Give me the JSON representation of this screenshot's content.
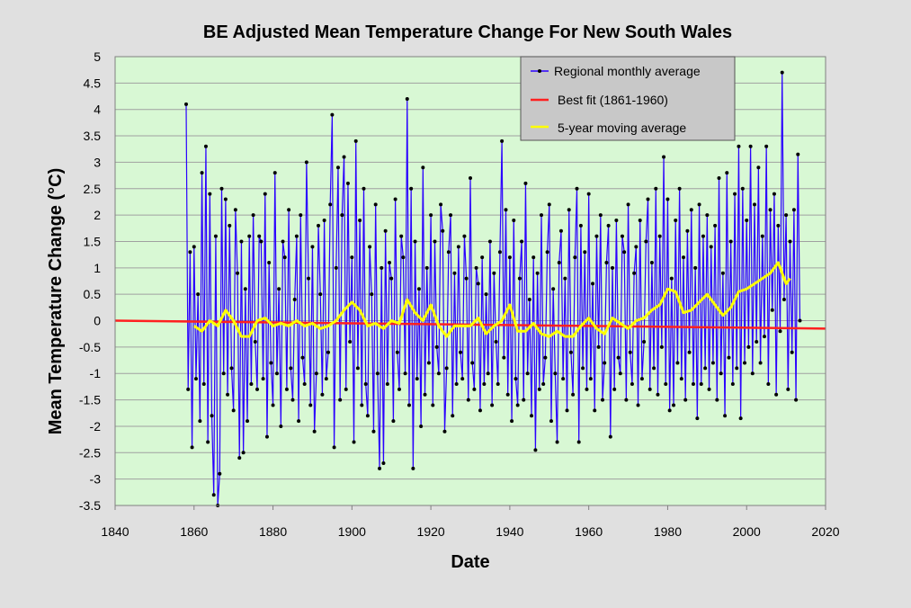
{
  "chart_data": {
    "type": "line",
    "title": "BE Adjusted Mean Temperature Change For New South Wales",
    "xlabel": "Date",
    "ylabel": "Mean  Temperature  Change  (°C)",
    "xlim": [
      1840,
      2020
    ],
    "ylim": [
      -3.5,
      5
    ],
    "xticks": [
      "1840",
      "1860",
      "1880",
      "1900",
      "1920",
      "1940",
      "1960",
      "1980",
      "2000",
      "2020"
    ],
    "yticks": [
      "5",
      "4.5",
      "4",
      "3.5",
      "3",
      "2.5",
      "2",
      "1.5",
      "1",
      "0.5",
      "0",
      "-0.5",
      "-1",
      "-1.5",
      "-2",
      "-2.5",
      "-3",
      "-3.5"
    ],
    "grid": true,
    "legend_position": "top-right",
    "colors": {
      "background": "#e0e0e0",
      "plot_background": "#d8f8d4",
      "grid": "#a0a0a0",
      "monthly_line": "#2a00ff",
      "monthly_marker": "#000000",
      "best_fit": "#ff2020",
      "moving_average": "#ffff00",
      "legend_background": "#c8c8c8"
    },
    "series": [
      {
        "name": "Regional monthly average",
        "x_start": 1858,
        "x_step": 0.5,
        "values": [
          4.1,
          -1.3,
          1.3,
          -2.4,
          1.4,
          -1.1,
          0.5,
          -1.9,
          2.8,
          -1.2,
          3.3,
          -2.3,
          2.4,
          -1.8,
          -3.3,
          1.6,
          -3.5,
          -2.9,
          2.5,
          -1.0,
          2.3,
          -1.4,
          1.8,
          -0.9,
          -1.7,
          2.1,
          0.9,
          -2.6,
          1.5,
          -2.5,
          0.6,
          -1.9,
          1.6,
          -1.2,
          2.0,
          -0.4,
          -1.3,
          1.6,
          1.5,
          -1.1,
          2.4,
          -2.2,
          1.1,
          -0.8,
          -1.6,
          2.8,
          -1.0,
          0.6,
          -2.0,
          1.5,
          1.2,
          -1.3,
          2.1,
          -0.9,
          -1.5,
          0.4,
          1.6,
          -1.9,
          2.0,
          -0.7,
          -1.2,
          3.0,
          0.8,
          -1.6,
          1.4,
          -2.1,
          -1.0,
          1.8,
          0.5,
          -1.4,
          1.9,
          -1.1,
          -0.6,
          2.2,
          3.9,
          -2.4,
          1.0,
          2.9,
          -1.5,
          2.0,
          3.1,
          -1.3,
          2.6,
          -0.4,
          1.2,
          -2.3,
          3.4,
          -0.9,
          1.9,
          -1.6,
          2.5,
          -1.2,
          -1.8,
          1.4,
          0.5,
          -2.1,
          2.2,
          -1.0,
          -2.8,
          1.0,
          -2.7,
          1.7,
          -1.2,
          1.1,
          0.8,
          -1.9,
          2.3,
          -0.6,
          -1.3,
          1.6,
          1.2,
          -1.0,
          4.2,
          -1.6,
          2.5,
          -2.8,
          1.5,
          -1.1,
          0.6,
          -2.0,
          2.9,
          -1.4,
          1.0,
          -0.8,
          2.0,
          -1.6,
          1.5,
          -0.5,
          -1.0,
          2.2,
          1.7,
          -2.1,
          -0.9,
          1.3,
          2.0,
          -1.8,
          0.9,
          -1.2,
          1.4,
          -0.6,
          -1.1,
          1.6,
          0.8,
          -1.5,
          2.7,
          -0.8,
          -1.3,
          1.0,
          0.7,
          -1.7,
          1.2,
          -1.2,
          0.5,
          -1.0,
          1.5,
          -1.6,
          0.9,
          -0.4,
          -1.2,
          1.3,
          3.4,
          -0.7,
          2.1,
          -1.4,
          1.2,
          -1.9,
          1.9,
          -1.1,
          -1.6,
          0.8,
          1.5,
          -1.5,
          2.6,
          -1.0,
          0.4,
          -1.8,
          1.2,
          -2.45,
          0.9,
          -1.3,
          2.0,
          -1.2,
          -0.7,
          1.3,
          2.2,
          -1.9,
          0.6,
          -1.0,
          -2.3,
          1.1,
          1.7,
          -1.1,
          0.8,
          -1.7,
          2.1,
          -0.6,
          -1.4,
          1.2,
          2.5,
          -2.3,
          1.8,
          -0.9,
          1.3,
          -1.3,
          2.4,
          -1.1,
          0.7,
          -1.7,
          1.6,
          -0.5,
          2.0,
          -1.5,
          -0.8,
          1.1,
          1.8,
          -2.2,
          1.0,
          -1.3,
          1.9,
          -0.7,
          -1.0,
          1.6,
          1.3,
          -1.5,
          2.2,
          -0.6,
          -1.2,
          0.9,
          1.4,
          -1.6,
          1.9,
          -1.1,
          -0.4,
          1.5,
          2.3,
          -1.3,
          1.1,
          -0.9,
          2.5,
          -1.4,
          1.6,
          -0.5,
          3.1,
          -1.2,
          2.3,
          -1.7,
          0.8,
          -1.6,
          1.9,
          -0.8,
          2.5,
          -1.1,
          1.2,
          -1.5,
          1.7,
          -0.6,
          2.1,
          -1.2,
          1.0,
          -1.85,
          2.2,
          -1.2,
          1.6,
          -0.9,
          2.0,
          -1.3,
          1.4,
          -0.8,
          1.8,
          -1.5,
          2.7,
          -1.0,
          0.9,
          -1.8,
          2.8,
          -0.7,
          1.5,
          -1.2,
          2.4,
          -0.9,
          3.3,
          -1.85,
          2.5,
          -0.8,
          1.9,
          -0.5,
          3.3,
          -1.0,
          2.2,
          -0.4,
          2.9,
          -0.8,
          1.6,
          -0.3,
          3.3,
          -1.2,
          2.1,
          0.2,
          2.4,
          -1.4,
          1.8,
          -0.2,
          4.7,
          0.4,
          2.0,
          -1.3,
          1.5,
          -0.6,
          2.1,
          -1.5,
          3.15,
          0.0
        ]
      },
      {
        "name": "Best fit (1861-1960)",
        "x": [
          1840,
          2020
        ],
        "values": [
          0.0,
          -0.15
        ]
      },
      {
        "name": "5-year moving average",
        "x": [
          1860,
          1862,
          1864,
          1866,
          1868,
          1870,
          1872,
          1874,
          1876,
          1878,
          1880,
          1882,
          1884,
          1886,
          1888,
          1890,
          1892,
          1894,
          1896,
          1898,
          1900,
          1902,
          1904,
          1906,
          1908,
          1910,
          1912,
          1914,
          1916,
          1918,
          1920,
          1922,
          1924,
          1926,
          1928,
          1930,
          1932,
          1934,
          1936,
          1938,
          1940,
          1942,
          1944,
          1946,
          1948,
          1950,
          1952,
          1954,
          1956,
          1958,
          1960,
          1962,
          1964,
          1966,
          1968,
          1970,
          1972,
          1974,
          1976,
          1978,
          1980,
          1982,
          1984,
          1986,
          1988,
          1990,
          1992,
          1994,
          1996,
          1998,
          2000,
          2002,
          2004,
          2006,
          2008,
          2010,
          2011
        ],
        "values": [
          -0.1,
          -0.2,
          0.0,
          -0.1,
          0.2,
          0.0,
          -0.3,
          -0.3,
          0.0,
          0.05,
          -0.1,
          -0.05,
          -0.1,
          0.0,
          -0.1,
          -0.05,
          -0.15,
          -0.1,
          0.0,
          0.2,
          0.35,
          0.2,
          -0.1,
          -0.05,
          -0.15,
          0.0,
          -0.05,
          0.4,
          0.15,
          0.0,
          0.3,
          -0.1,
          -0.3,
          -0.1,
          -0.1,
          -0.1,
          0.05,
          -0.25,
          -0.1,
          0.0,
          0.3,
          -0.2,
          -0.2,
          -0.05,
          -0.25,
          -0.3,
          -0.2,
          -0.3,
          -0.3,
          -0.1,
          0.05,
          -0.15,
          -0.25,
          0.05,
          -0.05,
          -0.15,
          0.0,
          0.05,
          0.2,
          0.3,
          0.6,
          0.55,
          0.15,
          0.2,
          0.35,
          0.5,
          0.3,
          0.1,
          0.25,
          0.55,
          0.6,
          0.7,
          0.8,
          0.9,
          1.1,
          0.7,
          0.8
        ]
      }
    ]
  }
}
